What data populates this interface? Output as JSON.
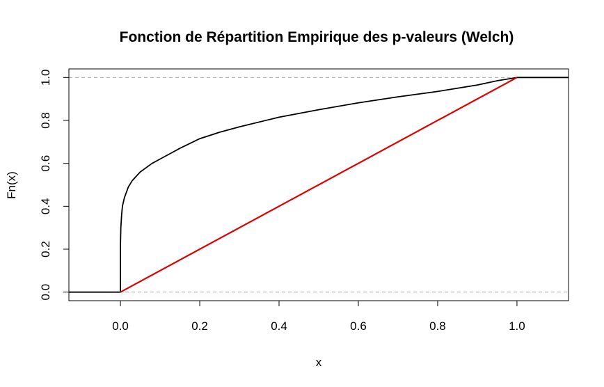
{
  "chart_data": {
    "type": "line",
    "title": "Fonction de Répartition Empirique des p-valeurs (Welch)",
    "xlabel": "x",
    "ylabel": "Fn(x)",
    "xlim": [
      -0.13,
      1.13
    ],
    "ylim": [
      -0.04,
      1.04
    ],
    "xticks": [
      0.0,
      0.2,
      0.4,
      0.6,
      0.8,
      1.0
    ],
    "xtick_labels": [
      "0.0",
      "0.2",
      "0.4",
      "0.6",
      "0.8",
      "1.0"
    ],
    "yticks": [
      0.0,
      0.2,
      0.4,
      0.6,
      0.8,
      1.0
    ],
    "ytick_labels": [
      "0.0",
      "0.2",
      "0.4",
      "0.6",
      "0.8",
      "1.0"
    ],
    "reference_lines": [
      0,
      1
    ],
    "grid": false,
    "series": [
      {
        "color": "#000000",
        "x": [
          -0.13,
          0.0,
          0.0,
          0.001,
          0.003,
          0.005,
          0.01,
          0.02,
          0.03,
          0.05,
          0.08,
          0.1,
          0.15,
          0.2,
          0.25,
          0.3,
          0.4,
          0.5,
          0.6,
          0.7,
          0.8,
          0.9,
          0.95,
          1.0,
          1.13
        ],
        "y": [
          0.0,
          0.0,
          0.22,
          0.3,
          0.36,
          0.4,
          0.44,
          0.49,
          0.52,
          0.56,
          0.6,
          0.62,
          0.67,
          0.715,
          0.745,
          0.77,
          0.815,
          0.85,
          0.882,
          0.91,
          0.935,
          0.965,
          0.985,
          1.0,
          1.0
        ]
      },
      {
        "color": "#dd0000",
        "x": [
          0.0,
          1.0
        ],
        "y": [
          0.0,
          1.0
        ]
      }
    ]
  }
}
